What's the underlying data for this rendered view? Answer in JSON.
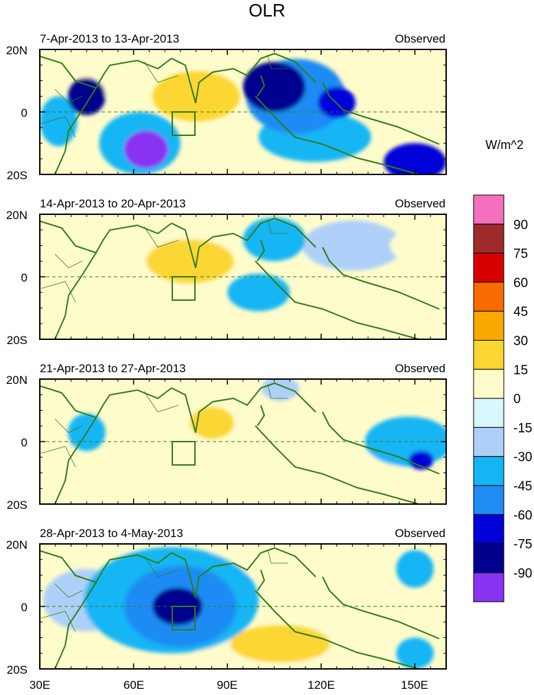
{
  "chart_data": {
    "type": "heatmap",
    "title": "OLR",
    "units": "W/m^2",
    "x_ticks": [
      "30E",
      "60E",
      "90E",
      "120E",
      "150E"
    ],
    "x_tick_values": [
      30,
      60,
      90,
      120,
      150
    ],
    "xlim": [
      30,
      160
    ],
    "y_ticks": [
      "20N",
      "0",
      "20S"
    ],
    "y_tick_values": [
      20,
      0,
      -20
    ],
    "ylim": [
      -20,
      20
    ],
    "colorbar": {
      "labels": [
        "90",
        "75",
        "60",
        "45",
        "30",
        "15",
        "0",
        "-15",
        "-30",
        "-45",
        "-60",
        "-75",
        "-90"
      ],
      "levels": [
        105,
        90,
        75,
        60,
        45,
        30,
        15,
        0,
        -15,
        -30,
        -45,
        -60,
        -75,
        -90,
        -105
      ],
      "colors": [
        "#f46fbe",
        "#9e2a2a",
        "#d80000",
        "#f86b00",
        "#f8a800",
        "#fcd630",
        "#fffccc",
        "#d8f6fc",
        "#aed0f8",
        "#15b5f4",
        "#1f8cf4",
        "#0000d8",
        "#00008e",
        "#8a32f2"
      ]
    },
    "panels": [
      {
        "label": "7-Apr-2013 to 13-Apr-2013",
        "tag": "Observed",
        "anomalies": [
          {
            "lon": 45,
            "lat": 5,
            "value": -75,
            "rx": 6,
            "ry": 6
          },
          {
            "lon": 36,
            "lat": -3,
            "value": -30,
            "rx": 6,
            "ry": 8
          },
          {
            "lon": 64,
            "lat": -12,
            "value": -90,
            "rx": 7,
            "ry": 6
          },
          {
            "lon": 62,
            "lat": -10,
            "value": -30,
            "rx": 13,
            "ry": 10
          },
          {
            "lon": 80,
            "lat": 5,
            "value": 30,
            "rx": 14,
            "ry": 8
          },
          {
            "lon": 105,
            "lat": 8,
            "value": -75,
            "rx": 10,
            "ry": 8
          },
          {
            "lon": 112,
            "lat": 5,
            "value": -45,
            "rx": 16,
            "ry": 12
          },
          {
            "lon": 125,
            "lat": 3,
            "value": -60,
            "rx": 6,
            "ry": 5
          },
          {
            "lon": 118,
            "lat": -8,
            "value": -30,
            "rx": 18,
            "ry": 8
          },
          {
            "lon": 150,
            "lat": -16,
            "value": -60,
            "rx": 10,
            "ry": 6
          },
          {
            "lon": 140,
            "lat": 12,
            "value": 15,
            "rx": 14,
            "ry": 6
          },
          {
            "lon": 53,
            "lat": 12,
            "value": 15,
            "rx": 10,
            "ry": 7
          }
        ]
      },
      {
        "label": "14-Apr-2013 to 20-Apr-2013",
        "tag": "Observed",
        "anomalies": [
          {
            "lon": 78,
            "lat": 5,
            "value": 30,
            "rx": 14,
            "ry": 7
          },
          {
            "lon": 74,
            "lat": 8,
            "value": 15,
            "rx": 18,
            "ry": 9
          },
          {
            "lon": 50,
            "lat": -8,
            "value": 15,
            "rx": 14,
            "ry": 8
          },
          {
            "lon": 133,
            "lat": -12,
            "value": 15,
            "rx": 22,
            "ry": 8
          },
          {
            "lon": 105,
            "lat": 12,
            "value": -30,
            "rx": 10,
            "ry": 7
          },
          {
            "lon": 130,
            "lat": 10,
            "value": -15,
            "rx": 16,
            "ry": 8
          },
          {
            "lon": 100,
            "lat": -5,
            "value": -30,
            "rx": 10,
            "ry": 6
          },
          {
            "lon": 150,
            "lat": 10,
            "value": 15,
            "rx": 8,
            "ry": 5
          },
          {
            "lon": 38,
            "lat": 12,
            "value": 15,
            "rx": 8,
            "ry": 6
          }
        ]
      },
      {
        "label": "21-Apr-2013 to 27-Apr-2013",
        "tag": "Observed",
        "anomalies": [
          {
            "lon": 45,
            "lat": 3,
            "value": -30,
            "rx": 6,
            "ry": 6
          },
          {
            "lon": 70,
            "lat": 5,
            "value": 15,
            "rx": 14,
            "ry": 7
          },
          {
            "lon": 85,
            "lat": 6,
            "value": 30,
            "rx": 7,
            "ry": 5
          },
          {
            "lon": 55,
            "lat": -10,
            "value": 15,
            "rx": 14,
            "ry": 6
          },
          {
            "lon": 125,
            "lat": 15,
            "value": 15,
            "rx": 18,
            "ry": 5
          },
          {
            "lon": 148,
            "lat": 0,
            "value": -30,
            "rx": 14,
            "ry": 8
          },
          {
            "lon": 152,
            "lat": -6,
            "value": -60,
            "rx": 4,
            "ry": 3
          },
          {
            "lon": 130,
            "lat": -10,
            "value": 15,
            "rx": 16,
            "ry": 6
          },
          {
            "lon": 107,
            "lat": 17,
            "value": -15,
            "rx": 6,
            "ry": 4
          }
        ]
      },
      {
        "label": "28-Apr-2013 to 4-May-2013",
        "tag": "Observed",
        "anomalies": [
          {
            "lon": 75,
            "lat": 0,
            "value": -45,
            "rx": 18,
            "ry": 13
          },
          {
            "lon": 74,
            "lat": 0,
            "value": -75,
            "rx": 8,
            "ry": 6
          },
          {
            "lon": 72,
            "lat": 2,
            "value": -30,
            "rx": 28,
            "ry": 17
          },
          {
            "lon": 45,
            "lat": 2,
            "value": -15,
            "rx": 14,
            "ry": 10
          },
          {
            "lon": 107,
            "lat": -12,
            "value": 30,
            "rx": 16,
            "ry": 6
          },
          {
            "lon": 110,
            "lat": -14,
            "value": 15,
            "rx": 30,
            "ry": 7
          },
          {
            "lon": 95,
            "lat": 15,
            "value": 15,
            "rx": 12,
            "ry": 5
          },
          {
            "lon": 150,
            "lat": 12,
            "value": -30,
            "rx": 6,
            "ry": 6
          },
          {
            "lon": 150,
            "lat": -15,
            "value": -30,
            "rx": 6,
            "ry": 5
          },
          {
            "lon": 120,
            "lat": 10,
            "value": 15,
            "rx": 10,
            "ry": 7
          }
        ]
      }
    ]
  }
}
